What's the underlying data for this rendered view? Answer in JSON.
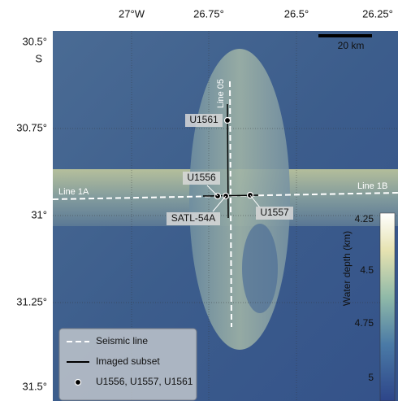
{
  "map": {
    "top_labels": [
      "27°W",
      "26.75°",
      "26.5°",
      "26.25°"
    ],
    "left_labels": [
      "30.5°",
      "S",
      "30.75°",
      "31°",
      "31.25°",
      "31.5°"
    ],
    "scale_bar": "20 km",
    "lines": [
      "Line 05",
      "Line 1A",
      "Line 1B"
    ],
    "sites": [
      "U1561",
      "U1556",
      "U1557",
      "SATL-54A"
    ],
    "colorbar": {
      "title": "Water depth (km)",
      "ticks": [
        "4.25",
        "4.5",
        "4.75",
        "5"
      ]
    },
    "legend": [
      "Seismic line",
      "Imaged subset",
      "U1556, U1557, U1561"
    ]
  }
}
